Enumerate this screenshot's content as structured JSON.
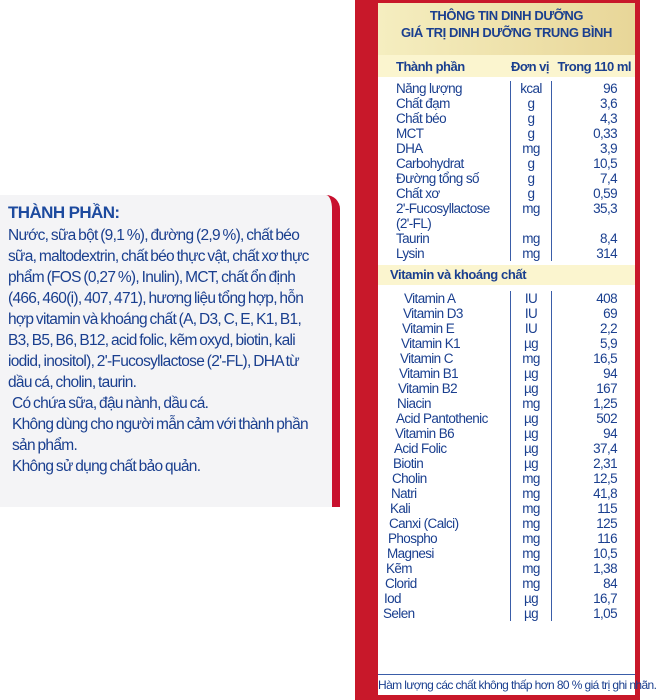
{
  "ingredients": {
    "title": "THÀNH PHẦN:",
    "paragraphs": [
      "Nước, sữa bột (9,1 %), đường (2,9 %), chất béo sữa, maltodextrin, chất béo thực vật, chất xơ thực phẩm (FOS (0,27 %), Inulin), MCT, chất ổn định (466, 460(i), 407, 471), hương liệu tổng hợp, hỗn hợp vitamin và khoáng chất (A, D3, C, E, K1, B1, B3, B5, B6, B12, acid folic, kẽm oxyd, biotin, kali iodid, inositol), 2'-Fucosyllactose (2'-FL), DHA từ dầu cá, cholin, taurin.",
      "Có chứa sữa, đậu nành, dầu cá.",
      "Không dùng cho người mẫn cảm với thành phần sản phẩm.",
      "Không sử dụng chất bảo quản."
    ]
  },
  "nutrition": {
    "title1": "THÔNG TIN DINH DƯỠNG",
    "title2": "GIÁ TRỊ DINH DƯỠNG TRUNG BÌNH",
    "headers": [
      "Thành phần",
      "Đơn vị",
      "Trong 110 ml"
    ],
    "rows": [
      [
        "Năng lượng",
        "kcal",
        "96"
      ],
      [
        "Chất đạm",
        "g",
        "3,6"
      ],
      [
        "Chất béo",
        "g",
        "4,3"
      ],
      [
        "MCT",
        "g",
        "0,33"
      ],
      [
        "DHA",
        "mg",
        "3,9"
      ],
      [
        "Carbohydrat",
        "g",
        "10,5"
      ],
      [
        "Đường tổng số",
        "g",
        "7,4"
      ],
      [
        "Chất xơ",
        "g",
        "0,59"
      ],
      [
        "2'-Fucosyllactose",
        "mg",
        "35,3"
      ],
      [
        "(2'-FL)",
        "",
        ""
      ],
      [
        "Taurin",
        "mg",
        "8,4"
      ],
      [
        "Lysin",
        "mg",
        "314"
      ]
    ],
    "section": "Vitamin và khoáng chất",
    "vitamins": [
      [
        "Vitamin A",
        "IU",
        "408"
      ],
      [
        "Vitamin D3",
        "IU",
        "69"
      ],
      [
        "Vitamin E",
        "IU",
        "2,2"
      ],
      [
        "Vitamin K1",
        "µg",
        "5,9"
      ],
      [
        "Vitamin C",
        "mg",
        "16,5"
      ],
      [
        "Vitamin B1",
        "µg",
        "94"
      ],
      [
        "Vitamin B2",
        "µg",
        "167"
      ],
      [
        "Niacin",
        "mg",
        "1,25"
      ],
      [
        "Acid Pantothenic",
        "µg",
        "502"
      ],
      [
        "Vitamin B6",
        "µg",
        "94"
      ],
      [
        "Acid Folic",
        "µg",
        "37,4"
      ],
      [
        "Biotin",
        "µg",
        "2,31"
      ],
      [
        "Cholin",
        "mg",
        "12,5"
      ],
      [
        "Natri",
        "mg",
        "41,8"
      ],
      [
        "Kali",
        "mg",
        "115"
      ],
      [
        "Canxi (Calci)",
        "mg",
        "125"
      ],
      [
        "Phospho",
        "mg",
        "116"
      ],
      [
        "Magnesi",
        "mg",
        "10,5"
      ],
      [
        "Kẽm",
        "mg",
        "1,38"
      ],
      [
        "Clorid",
        "mg",
        "84"
      ],
      [
        "Iod",
        "µg",
        "16,7"
      ],
      [
        "Selen",
        "µg",
        "1,05"
      ]
    ],
    "footnote": "Hàm lượng các chất không thấp hơn 80 % giá trị ghi nhãn."
  }
}
